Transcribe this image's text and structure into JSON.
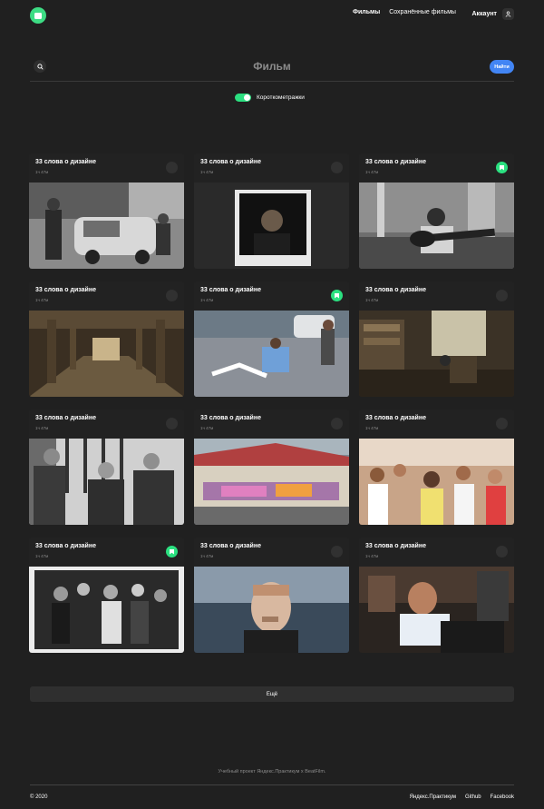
{
  "header": {
    "nav": [
      "Фильмы",
      "Сохранённые фильмы"
    ],
    "account_label": "Аккаунт"
  },
  "search": {
    "placeholder": "Фильм",
    "button_label": "Найти"
  },
  "filter": {
    "label": "Короткометражки",
    "enabled": true
  },
  "colors": {
    "accent_green": "#2be080",
    "button_blue": "#4285f4",
    "background": "#202020"
  },
  "cards": [
    {
      "title": "33 слова о дизайне",
      "duration": "1ч 47м",
      "saved": false,
      "image": "street-photographer-car-bw"
    },
    {
      "title": "33 слова о дизайне",
      "duration": "1ч 47м",
      "saved": false,
      "image": "polaroid-portrait"
    },
    {
      "title": "33 слова о дизайне",
      "duration": "1ч 47м",
      "saved": true,
      "image": "guitarist-bw"
    },
    {
      "title": "33 слова о дизайне",
      "duration": "1ч 47м",
      "saved": false,
      "image": "empty-hall-columns"
    },
    {
      "title": "33 слова о дизайне",
      "duration": "1ч 47м",
      "saved": true,
      "image": "skateboarders-street"
    },
    {
      "title": "33 слова о дизайне",
      "duration": "1ч 47м",
      "saved": false,
      "image": "cluttered-room"
    },
    {
      "title": "33 слова о дизайне",
      "duration": "1ч 47м",
      "saved": false,
      "image": "three-men-bw"
    },
    {
      "title": "33 слова о дизайне",
      "duration": "1ч 47м",
      "saved": false,
      "image": "graffiti-train"
    },
    {
      "title": "33 слова о дизайне",
      "duration": "1ч 47м",
      "saved": false,
      "image": "marathon-crowd"
    },
    {
      "title": "33 слова о дизайне",
      "duration": "1ч 47м",
      "saved": true,
      "image": "party-crowd-bw"
    },
    {
      "title": "33 слова о дизайне",
      "duration": "1ч 47м",
      "saved": false,
      "image": "man-smoking"
    },
    {
      "title": "33 слова о дизайне",
      "duration": "1ч 47м",
      "saved": false,
      "image": "man-at-computer-studio"
    }
  ],
  "more_button_label": "Ещё",
  "footer": {
    "note": "Учебный проект Яндекс.Практикум х BeatFilm.",
    "copyright": "© 2020",
    "links": [
      "Яндекс.Практикум",
      "Github",
      "Facebook"
    ]
  }
}
